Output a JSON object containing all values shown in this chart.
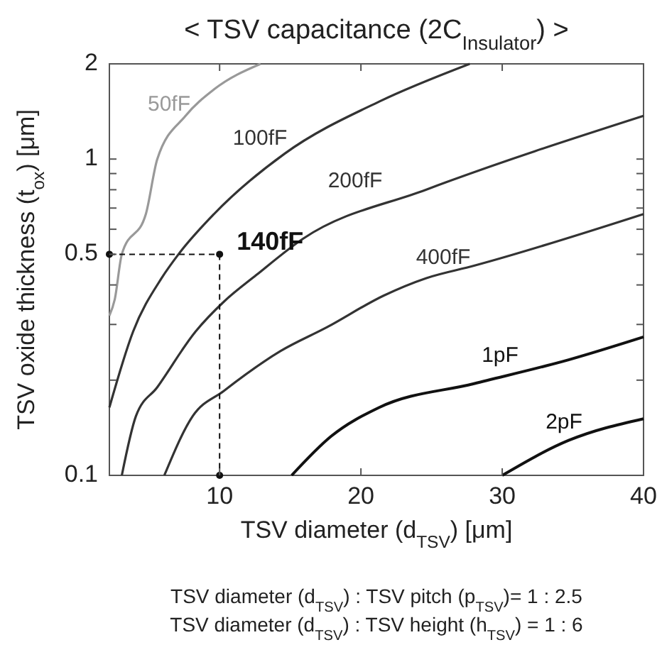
{
  "chart_data": {
    "type": "line",
    "title": "< TSV capacitance (2C$_{Insulator}$) >",
    "xlabel": "TSV diameter (d$_{TSV}$) [μm]",
    "ylabel": "TSV oxide thickness (t$_{ox}$) [μm]",
    "log": "y",
    "xlim": [
      2.2,
      40
    ],
    "ylim": [
      0.1,
      2
    ],
    "xticks": [
      10,
      20,
      30,
      40
    ],
    "yticks": [
      0.1,
      {
        "value": 0.2,
        "label": null
      },
      {
        "value": 0.3,
        "label": null
      },
      {
        "value": 0.4,
        "label": null
      },
      0.5,
      {
        "value": 0.6,
        "label": null
      },
      {
        "value": 0.7,
        "label": null
      },
      {
        "value": 0.8,
        "label": null
      },
      {
        "value": 0.9,
        "label": null
      },
      1,
      2
    ],
    "grid": false,
    "marker": "none",
    "series": [
      {
        "name": "50fF",
        "color": "#999999",
        "x": [
          2.2,
          2.58,
          3.08,
          4.78,
          5.59,
          7.59,
          9.6,
          12.9
        ],
        "values": [
          0.32,
          0.36,
          0.5,
          0.67,
          1,
          1.37,
          1.66,
          2
        ]
      },
      {
        "name": "100fF",
        "color": "#333333",
        "x": [
          2.2,
          3.88,
          5.89,
          7.09,
          9.6,
          14.6,
          21.3,
          27.7
        ],
        "values": [
          0.164,
          0.285,
          0.42,
          0.5,
          0.67,
          1.04,
          1.52,
          2
        ]
      },
      {
        "name": "200fF",
        "color": "#333333",
        "x": [
          3.08,
          4.08,
          5.59,
          8.3,
          10.3,
          12.6,
          15.9,
          24.6,
          40
        ],
        "values": [
          0.1,
          0.154,
          0.19,
          0.285,
          0.354,
          0.43,
          0.56,
          0.8,
          1.37
        ]
      },
      {
        "name": "400fF",
        "color": "#333333",
        "x": [
          6.09,
          8.1,
          10.3,
          14.3,
          17.6,
          21.6,
          24.6,
          28,
          40
        ],
        "values": [
          0.1,
          0.154,
          0.185,
          0.247,
          0.294,
          0.37,
          0.42,
          0.46,
          0.67
        ]
      },
      {
        "name": "1pF",
        "color": "#111111",
        "x": [
          15.1,
          17.9,
          21.3,
          28,
          34.7,
          40
        ],
        "values": [
          0.1,
          0.133,
          0.164,
          0.195,
          0.232,
          0.274
        ]
      },
      {
        "name": "2pF",
        "color": "#111111",
        "x": [
          30,
          34.7,
          40
        ],
        "values": [
          0.1,
          0.129,
          0.151
        ]
      },
      {
        "type": "scatter",
        "name": "140fF",
        "color": "#111111",
        "marker": "circle",
        "x": [
          10,
          2.2,
          10
        ],
        "values": [
          0.5,
          0.5,
          0.1
        ]
      }
    ],
    "annotations": [
      "TSV diameter (d$_{TSV}$) : TSV pitch (p$_{TSV}$)= 1 : 2.5",
      "TSV diameter (d$_{TSV}$) : TSV height (h$_{TSV}$) = 1 : 6"
    ]
  }
}
